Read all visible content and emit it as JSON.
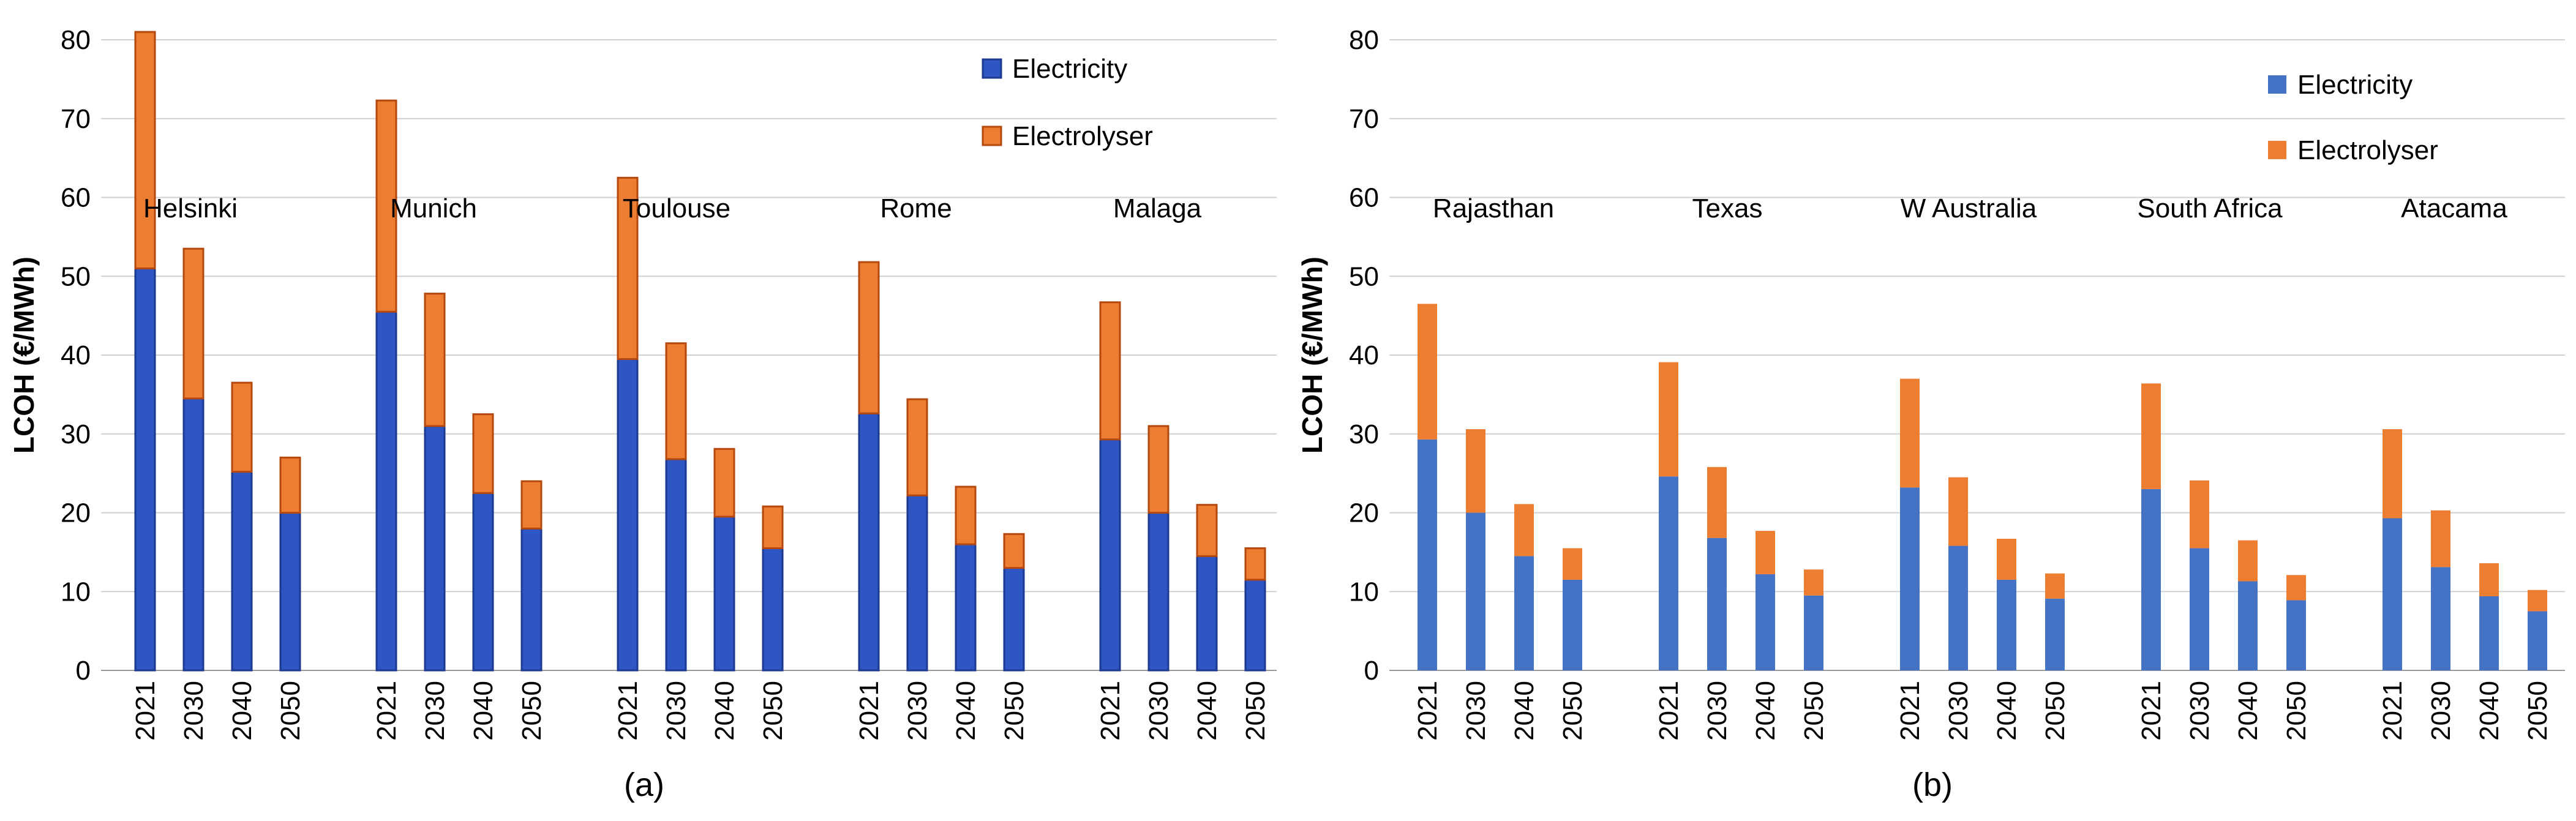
{
  "chart_data": [
    {
      "type": "bar",
      "stacked": true,
      "panel": "a",
      "caption": "(a)",
      "ylabel": "LCOH (€/MWh)",
      "ylim": [
        0,
        80
      ],
      "yticks": [
        0,
        10,
        20,
        30,
        40,
        50,
        60,
        70,
        80
      ],
      "years": [
        "2021",
        "2030",
        "2040",
        "2050"
      ],
      "groups": [
        "Helsinki",
        "Munich",
        "Toulouse",
        "Rome",
        "Malaga"
      ],
      "legend_position": "top-right",
      "colors": {
        "Electricity": "#2d56c4",
        "Electrolyser": "#ed7d31",
        "Electricity_edge": "#1c3a8f",
        "Electrolyser_edge": "#b4480f"
      },
      "series": [
        {
          "name": "Electricity",
          "values": [
            51,
            34.5,
            25.2,
            20,
            45.5,
            31,
            22.5,
            18,
            39.5,
            26.8,
            19.5,
            15.5,
            32.6,
            22.2,
            16,
            13,
            29.3,
            20,
            14.5,
            11.5
          ]
        },
        {
          "name": "Electrolyser",
          "values": [
            30,
            19,
            11.3,
            7,
            26.8,
            16.8,
            10,
            6,
            23,
            14.7,
            8.6,
            5.3,
            19.2,
            12.2,
            7.3,
            4.3,
            17.4,
            11,
            6.5,
            4
          ]
        }
      ]
    },
    {
      "type": "bar",
      "stacked": true,
      "panel": "b",
      "caption": "(b)",
      "ylabel": "LCOH (€/MWh)",
      "ylim": [
        0,
        80
      ],
      "yticks": [
        0,
        10,
        20,
        30,
        40,
        50,
        60,
        70,
        80
      ],
      "years": [
        "2021",
        "2030",
        "2040",
        "2050"
      ],
      "groups": [
        "Rajasthan",
        "Texas",
        "W Australia",
        "South Africa",
        "Atacama"
      ],
      "legend_position": "top-right",
      "colors": {
        "Electricity": "#4472c4",
        "Electrolyser": "#ed7d31",
        "Electricity_edge": "#4472c4",
        "Electrolyser_edge": "#ed7d31"
      },
      "series": [
        {
          "name": "Electricity",
          "values": [
            29.3,
            20,
            14.5,
            11.5,
            24.6,
            16.8,
            12.2,
            9.5,
            23.2,
            15.8,
            11.5,
            9.1,
            23,
            15.5,
            11.3,
            8.9,
            19.3,
            13.1,
            9.4,
            7.5
          ]
        },
        {
          "name": "Electrolyser",
          "values": [
            17.2,
            10.6,
            6.6,
            4,
            14.5,
            9,
            5.5,
            3.3,
            13.8,
            8.7,
            5.2,
            3.2,
            13.4,
            8.6,
            5.2,
            3.2,
            11.3,
            7.2,
            4.2,
            2.7
          ]
        }
      ]
    }
  ]
}
